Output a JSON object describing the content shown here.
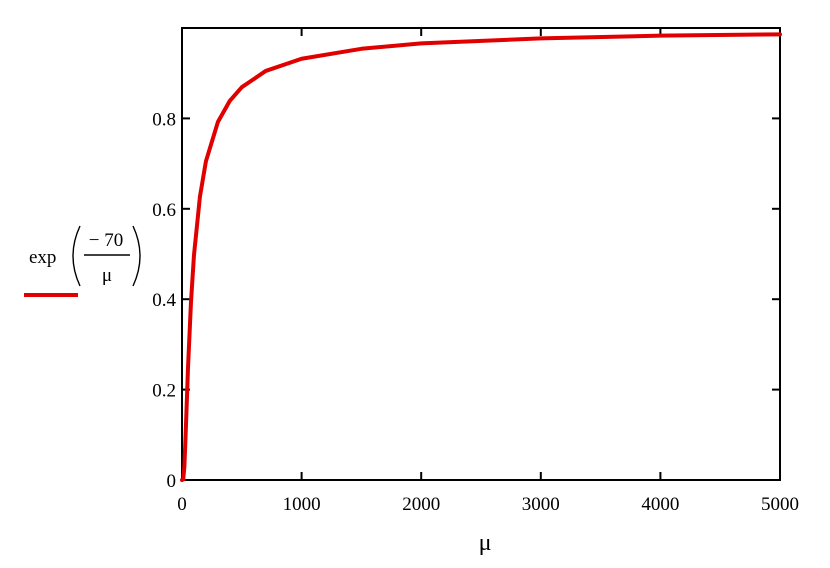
{
  "chart_data": {
    "type": "line",
    "function": "exp(-70/μ)",
    "xlabel": "μ",
    "ylabel": {
      "func": "exp",
      "numerator": "− 70",
      "denominator": "μ",
      "legend_color": "#e00000"
    },
    "xlim": [
      0,
      5000
    ],
    "ylim": [
      0,
      1
    ],
    "grid": false,
    "x_ticks": [
      {
        "value": 0,
        "label": "0"
      },
      {
        "value": 1000,
        "label": "1000"
      },
      {
        "value": 2000,
        "label": "2000"
      },
      {
        "value": 3000,
        "label": "3000"
      },
      {
        "value": 4000,
        "label": "4000"
      },
      {
        "value": 5000,
        "label": "5000"
      }
    ],
    "y_ticks": [
      {
        "value": 0,
        "label": "0"
      },
      {
        "value": 0.2,
        "label": "0.2"
      },
      {
        "value": 0.4,
        "label": "0.4"
      },
      {
        "value": 0.6,
        "label": "0.6"
      },
      {
        "value": 0.8,
        "label": "0.8"
      }
    ],
    "series": [
      {
        "color": "#e00000",
        "x": [
          0,
          10,
          20,
          30,
          50,
          75,
          100,
          150,
          200,
          300,
          400,
          500,
          700,
          1000,
          1500,
          2000,
          3000,
          4000,
          5000
        ],
        "y": [
          0,
          0.001,
          0.03,
          0.097,
          0.247,
          0.393,
          0.497,
          0.627,
          0.705,
          0.792,
          0.839,
          0.869,
          0.905,
          0.932,
          0.954,
          0.966,
          0.977,
          0.983,
          0.986
        ]
      }
    ]
  }
}
